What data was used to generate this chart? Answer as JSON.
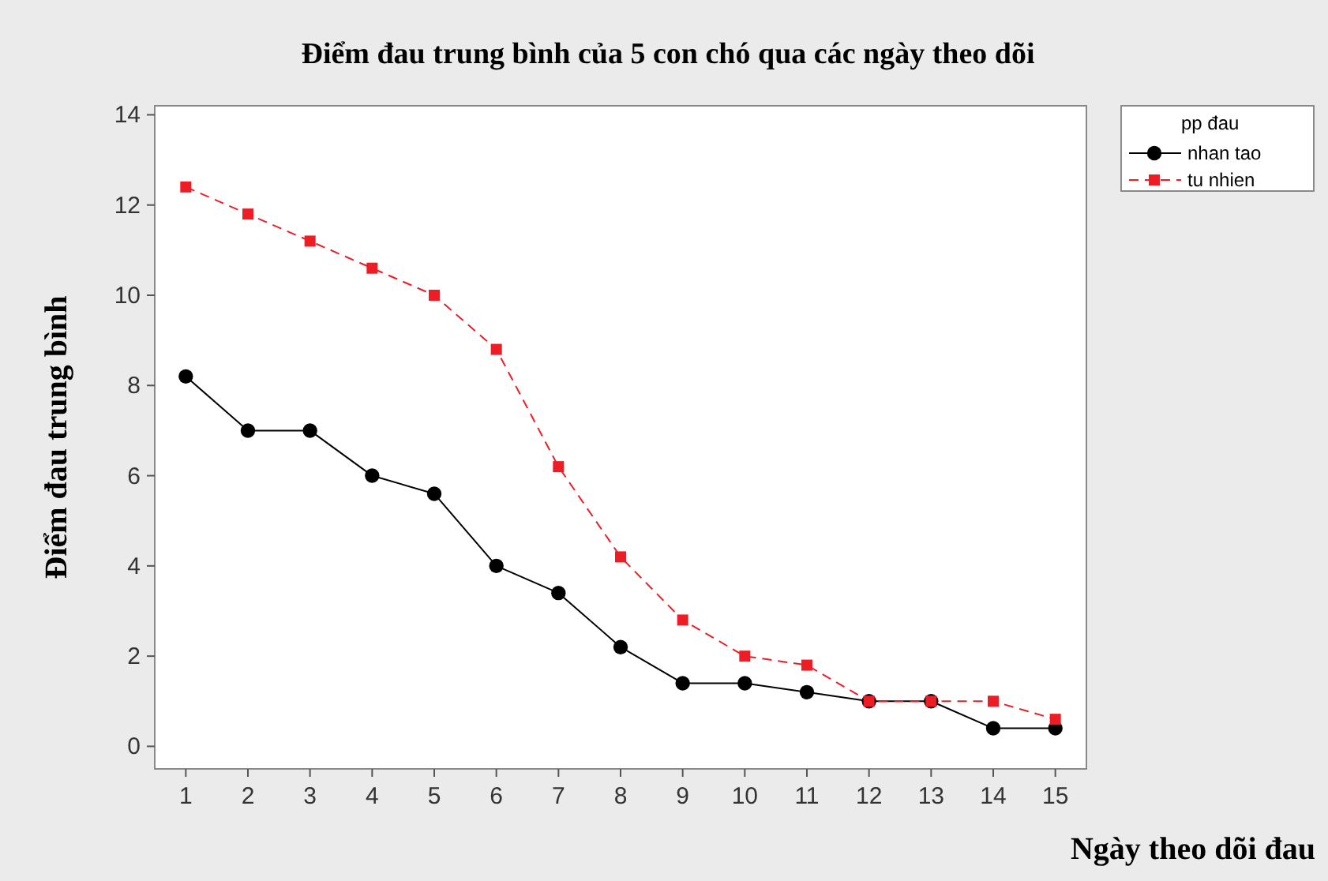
{
  "chart_data": {
    "type": "line",
    "title": "Điểm đau trung bình của 5 con chó qua các ngày theo dõi",
    "xlabel": "Ngày theo dõi đau",
    "ylabel": "Điểm đau trung bình",
    "legend_title": "pp đau",
    "x": [
      1,
      2,
      3,
      4,
      5,
      6,
      7,
      8,
      9,
      10,
      11,
      12,
      13,
      14,
      15
    ],
    "xlim": [
      0.5,
      15.5
    ],
    "xticks": [
      1,
      2,
      3,
      4,
      5,
      6,
      7,
      8,
      9,
      10,
      11,
      12,
      13,
      14,
      15
    ],
    "ylim": [
      -0.5,
      14.2
    ],
    "yticks": [
      0,
      2,
      4,
      6,
      8,
      10,
      12,
      14
    ],
    "legend": "top right",
    "grid": false,
    "series": [
      {
        "name": "nhan tao",
        "color": "#000000",
        "marker": "circle",
        "line_style": "solid",
        "values": [
          8.2,
          7.0,
          7.0,
          6.0,
          5.6,
          4.0,
          3.4,
          2.2,
          1.4,
          1.4,
          1.2,
          1.0,
          1.0,
          0.4,
          0.4
        ]
      },
      {
        "name": "tu nhien",
        "color": "#ee1c25",
        "marker": "square",
        "line_style": "dashed",
        "values": [
          12.4,
          11.8,
          11.2,
          10.6,
          10.0,
          8.8,
          6.2,
          4.2,
          2.8,
          2.0,
          1.8,
          1.0,
          1.0,
          1.0,
          0.6
        ]
      }
    ]
  }
}
